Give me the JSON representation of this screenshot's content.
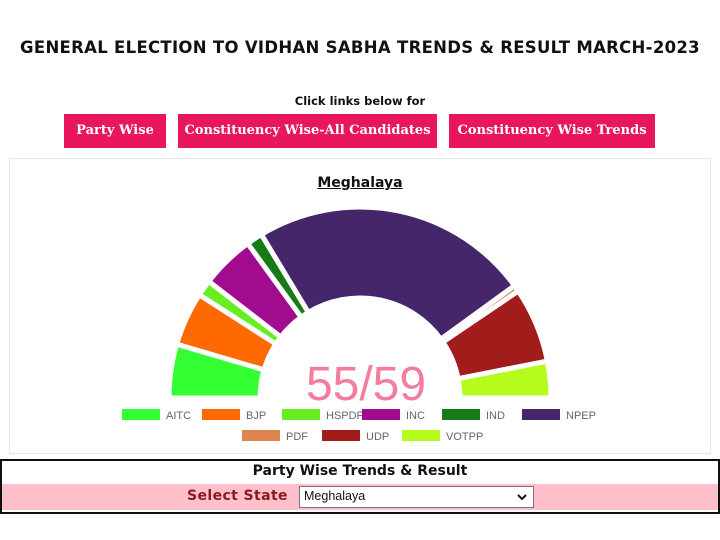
{
  "page": {
    "title": "GENERAL ELECTION TO VIDHAN SABHA TRENDS & RESULT MARCH-2023",
    "click_text": "Click links below for"
  },
  "links": [
    {
      "label": "Party Wise"
    },
    {
      "label": "Constituency Wise-All Candidates"
    },
    {
      "label": "Constituency Wise Trends"
    }
  ],
  "chart": {
    "state_title": "Meghalaya",
    "center_text": "55/59",
    "center_text_color": "#f47c9c"
  },
  "chart_data": {
    "type": "pie",
    "subtype": "semicircle-donut",
    "title": "Meghalaya",
    "total_label": "55/59",
    "series": [
      {
        "name": "AITC",
        "value": 5,
        "color": "#33ff33"
      },
      {
        "name": "BJP",
        "value": 5,
        "color": "#ff6a00"
      },
      {
        "name": "HSPDP",
        "value": 1.5,
        "color": "#66ee22"
      },
      {
        "name": "INC",
        "value": 5,
        "color": "#a10b8e"
      },
      {
        "name": "IND",
        "value": 1.5,
        "color": "#167a16"
      },
      {
        "name": "NPEP",
        "value": 26,
        "color": "#46266b"
      },
      {
        "name": "PDF",
        "value": 0.6,
        "color": "#e0834f"
      },
      {
        "name": "UDP",
        "value": 7,
        "color": "#a31c1c"
      },
      {
        "name": "VOTPP",
        "value": 3.4,
        "color": "#b5fb1c"
      }
    ],
    "legend_placement": "bottom"
  },
  "results": {
    "title": "Party Wise Trends & Result",
    "select_label": "Select State",
    "selected_state": "Meghalaya"
  }
}
